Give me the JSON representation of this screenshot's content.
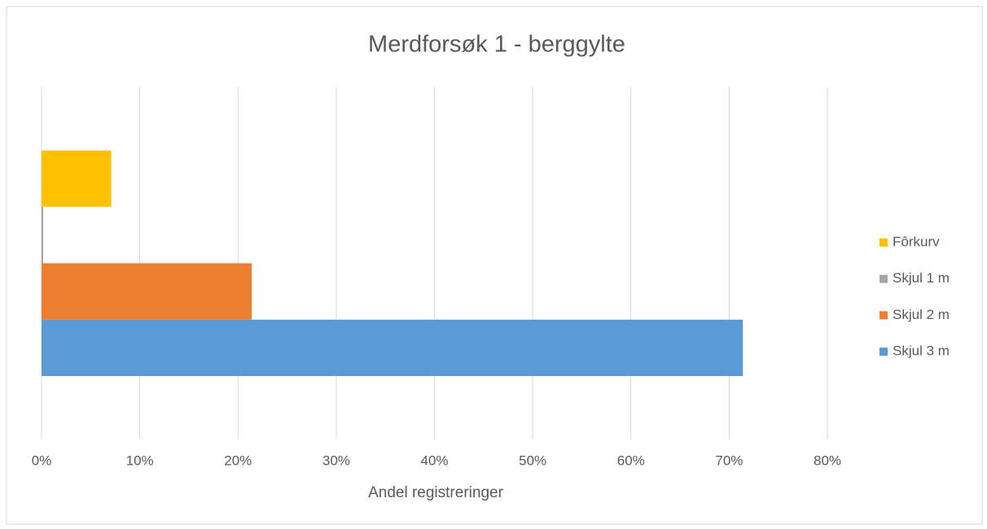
{
  "chart_data": {
    "type": "bar",
    "orientation": "horizontal",
    "title": "Merdforsøk 1 - berggylte",
    "x_label": "Andel registreringer",
    "categories": [
      null
    ],
    "series": [
      {
        "name": "Fôrkurv",
        "color": "#FFC000",
        "values": [
          7.1
        ]
      },
      {
        "name": "Skjul 1 m",
        "color": "#A5A5A5",
        "values": [
          0
        ]
      },
      {
        "name": "Skjul 2 m",
        "color": "#ED7D31",
        "values": [
          21.4
        ]
      },
      {
        "name": "Skjul 3 m",
        "color": "#5B9BD5",
        "values": [
          71.4
        ]
      }
    ],
    "xlim": [
      0,
      80
    ],
    "xticks": [
      {
        "value": 0,
        "label": "0%"
      },
      {
        "value": 10,
        "label": "10%"
      },
      {
        "value": 20,
        "label": "20%"
      },
      {
        "value": 30,
        "label": "30%"
      },
      {
        "value": 40,
        "label": "40%"
      },
      {
        "value": 50,
        "label": "50%"
      },
      {
        "value": 60,
        "label": "60%"
      },
      {
        "value": 70,
        "label": "70%"
      },
      {
        "value": 80,
        "label": "80%"
      }
    ],
    "grid": true,
    "legend": "right"
  }
}
